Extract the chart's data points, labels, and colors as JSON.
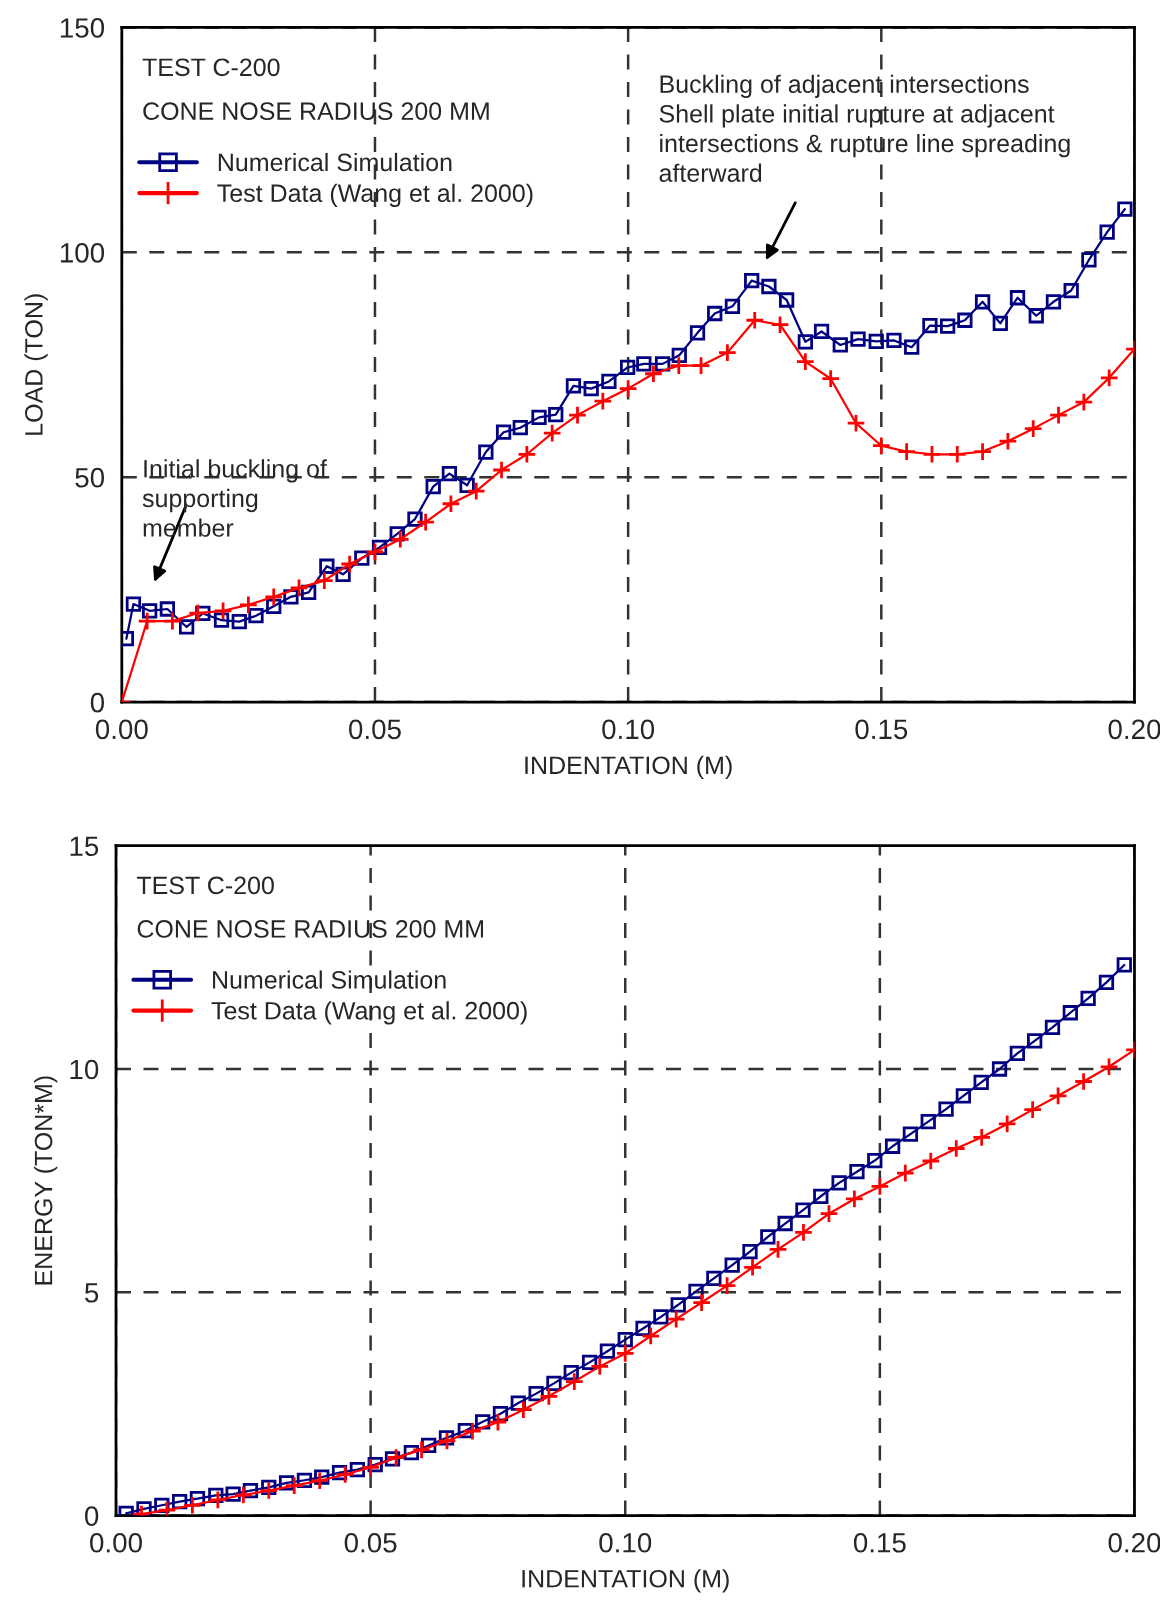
{
  "chart_data": [
    {
      "type": "line",
      "xlabel": "INDENTATION (M)",
      "ylabel": "LOAD (TON)",
      "annotations": [
        "TEST C-200",
        "CONE NOSE RADIUS 200 MM",
        "Buckling of adjacent intersections\nShell plate initial rupture at adjacent\nintersections & rupture line spreading\nafterward",
        "Initial buckling of\nsupporting\nmember"
      ],
      "xlim": [
        0,
        0.2
      ],
      "ylim": [
        0,
        150
      ],
      "xticks": [
        {
          "value": 0,
          "label": "0.00"
        },
        {
          "value": 0.05,
          "label": "0.05"
        },
        {
          "value": 0.1,
          "label": "0.10"
        },
        {
          "value": 0.15,
          "label": "0.15"
        },
        {
          "value": 0.2,
          "label": "0.20"
        }
      ],
      "yticks": [
        0,
        50,
        100,
        150
      ],
      "grid": true,
      "legend": "top left",
      "line_style": "solid",
      "series": [
        {
          "name": "Numerical Simulation",
          "color": "#000080",
          "marker": "square",
          "x": [
            0.0009,
            0.0023,
            0.0055,
            0.009,
            0.0128,
            0.016,
            0.0197,
            0.0232,
            0.0265,
            0.03,
            0.0334,
            0.0369,
            0.0405,
            0.0437,
            0.0474,
            0.0509,
            0.0544,
            0.0579,
            0.0615,
            0.0647,
            0.0682,
            0.0719,
            0.0754,
            0.0787,
            0.0824,
            0.0857,
            0.0892,
            0.0927,
            0.0962,
            0.0999,
            0.1031,
            0.1068,
            0.1101,
            0.1137,
            0.1171,
            0.1206,
            0.1244,
            0.1278,
            0.1313,
            0.135,
            0.1382,
            0.1419,
            0.1454,
            0.149,
            0.1525,
            0.156,
            0.1596,
            0.1631,
            0.1665,
            0.17,
            0.1735,
            0.1769,
            0.1806,
            0.184,
            0.1875,
            0.191,
            0.1946,
            0.1981
          ],
          "values": [
            14.1,
            21.8,
            20.3,
            20.7,
            16.7,
            19.7,
            18.2,
            17.9,
            19.2,
            21.3,
            23.4,
            24.4,
            30.2,
            28.4,
            32.0,
            34.4,
            37.4,
            40.7,
            47.9,
            50.8,
            48.2,
            55.6,
            60.0,
            61.0,
            63.3,
            63.9,
            70.3,
            69.7,
            71.3,
            74.4,
            75.2,
            75.2,
            77.1,
            82.1,
            86.4,
            88.0,
            93.7,
            92.4,
            89.4,
            80.1,
            82.4,
            79.4,
            80.7,
            80.2,
            80.4,
            78.9,
            83.7,
            83.6,
            84.9,
            89.0,
            84.2,
            89.9,
            85.9,
            89.0,
            91.5,
            98.3,
            104.5,
            109.6
          ]
        },
        {
          "name": "Test Data (Wang et al. 2000)",
          "color": "#ff0000",
          "marker": "cross",
          "x": [
            0,
            0.005,
            0.01,
            0.015,
            0.02,
            0.025,
            0.03,
            0.035,
            0.04,
            0.045,
            0.05,
            0.055,
            0.06,
            0.065,
            0.07,
            0.075,
            0.08,
            0.085,
            0.09,
            0.095,
            0.1,
            0.105,
            0.11,
            0.1144,
            0.1196,
            0.125,
            0.13,
            0.135,
            0.14,
            0.145,
            0.15,
            0.155,
            0.16,
            0.165,
            0.17,
            0.175,
            0.18,
            0.185,
            0.19,
            0.195,
            0.2
          ],
          "values": [
            0,
            18.0,
            18.0,
            19.8,
            20.3,
            21.6,
            23.4,
            25.4,
            27.0,
            30.7,
            33.4,
            36.2,
            40.0,
            44.1,
            46.9,
            51.6,
            55.1,
            59.8,
            63.8,
            66.9,
            69.7,
            73.0,
            74.8,
            74.8,
            77.7,
            84.9,
            83.9,
            75.7,
            71.9,
            62.0,
            57.0,
            55.7,
            55.1,
            55.1,
            55.7,
            58.0,
            60.8,
            63.8,
            66.7,
            72.1,
            78.5
          ]
        }
      ]
    },
    {
      "type": "line",
      "xlabel": "INDENTATION (M)",
      "ylabel": "ENERGY (TON*M)",
      "annotations": [
        "TEST C-200",
        "CONE NOSE RADIUS 200 MM"
      ],
      "xlim": [
        0,
        0.2
      ],
      "ylim": [
        0,
        15
      ],
      "xticks": [
        {
          "value": 0,
          "label": "0.00"
        },
        {
          "value": 0.05,
          "label": "0.05"
        },
        {
          "value": 0.1,
          "label": "0.10"
        },
        {
          "value": 0.15,
          "label": "0.15"
        },
        {
          "value": 0.2,
          "label": "0.20"
        }
      ],
      "yticks": [
        0,
        5,
        10,
        15
      ],
      "grid": true,
      "legend": "top left",
      "line_style": "solid",
      "series": [
        {
          "name": "Numerical Simulation",
          "color": "#000080",
          "marker": "square",
          "x": [
            0.002,
            0.0055,
            0.009,
            0.0125,
            0.016,
            0.0196,
            0.023,
            0.0264,
            0.03,
            0.0335,
            0.037,
            0.0404,
            0.0439,
            0.0474,
            0.0509,
            0.0543,
            0.058,
            0.0614,
            0.0649,
            0.0686,
            0.072,
            0.0755,
            0.079,
            0.0825,
            0.086,
            0.0894,
            0.093,
            0.0965,
            0.1,
            0.1035,
            0.107,
            0.1104,
            0.1139,
            0.1174,
            0.121,
            0.1245,
            0.128,
            0.1314,
            0.1349,
            0.1384,
            0.142,
            0.1455,
            0.149,
            0.1525,
            0.156,
            0.1595,
            0.163,
            0.1664,
            0.1699,
            0.1735,
            0.177,
            0.1804,
            0.1839,
            0.1874,
            0.1909,
            0.1945,
            0.198
          ],
          "values": [
            0.05,
            0.15,
            0.23,
            0.31,
            0.38,
            0.45,
            0.48,
            0.56,
            0.63,
            0.73,
            0.79,
            0.86,
            0.96,
            1.03,
            1.14,
            1.27,
            1.41,
            1.57,
            1.74,
            1.9,
            2.1,
            2.28,
            2.52,
            2.73,
            2.96,
            3.2,
            3.43,
            3.68,
            3.94,
            4.19,
            4.45,
            4.72,
            5.02,
            5.31,
            5.61,
            5.91,
            6.24,
            6.54,
            6.84,
            7.15,
            7.45,
            7.7,
            7.95,
            8.27,
            8.54,
            8.82,
            9.1,
            9.4,
            9.7,
            10.0,
            10.35,
            10.63,
            10.93,
            11.26,
            11.58,
            11.94,
            12.33
          ]
        },
        {
          "name": "Test Data (Wang et al. 2000)",
          "color": "#ff0000",
          "marker": "cross",
          "x": [
            0.005,
            0.01,
            0.015,
            0.02,
            0.025,
            0.03,
            0.035,
            0.04,
            0.045,
            0.05,
            0.055,
            0.06,
            0.065,
            0.07,
            0.075,
            0.08,
            0.085,
            0.09,
            0.095,
            0.1,
            0.105,
            0.11,
            0.115,
            0.12,
            0.125,
            0.13,
            0.135,
            0.14,
            0.145,
            0.15,
            0.155,
            0.16,
            0.165,
            0.17,
            0.175,
            0.18,
            0.185,
            0.19,
            0.195,
            0.2
          ],
          "values": [
            0.03,
            0.12,
            0.23,
            0.35,
            0.46,
            0.56,
            0.67,
            0.78,
            0.92,
            1.08,
            1.3,
            1.47,
            1.67,
            1.89,
            2.09,
            2.37,
            2.67,
            3.0,
            3.34,
            3.63,
            4.02,
            4.4,
            4.77,
            5.15,
            5.56,
            5.96,
            6.34,
            6.76,
            7.09,
            7.37,
            7.67,
            7.94,
            8.22,
            8.47,
            8.77,
            9.09,
            9.4,
            9.72,
            10.05,
            10.43
          ]
        }
      ]
    }
  ]
}
